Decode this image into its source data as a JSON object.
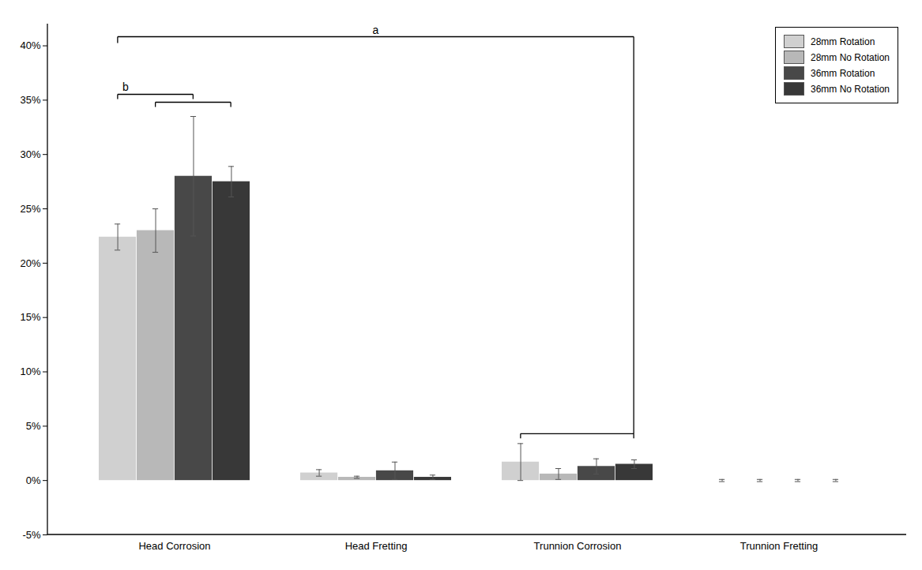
{
  "chart_data": {
    "type": "bar",
    "categories": [
      "Head Corrosion",
      "Head Fretting",
      "Trunnion Corrosion",
      "Trunnion Fretting"
    ],
    "series": [
      {
        "name": "28mm Rotation",
        "color": "#d0d0d0",
        "values": [
          0.224,
          0.007,
          0.017,
          0.0
        ],
        "errors": [
          0.012,
          0.003,
          0.017,
          0.001
        ]
      },
      {
        "name": "28mm No Rotation",
        "color": "#b8b8b8",
        "values": [
          0.23,
          0.003,
          0.006,
          0.0
        ],
        "errors": [
          0.02,
          0.001,
          0.005,
          0.001
        ]
      },
      {
        "name": "36mm Rotation",
        "color": "#484848",
        "values": [
          0.28,
          0.009,
          0.013,
          0.0
        ],
        "errors": [
          0.055,
          0.008,
          0.007,
          0.001
        ]
      },
      {
        "name": "36mm No Rotation",
        "color": "#383838",
        "values": [
          0.275,
          0.003,
          0.015,
          0.0
        ],
        "errors": [
          0.014,
          0.002,
          0.004,
          0.001
        ]
      }
    ],
    "ylim": [
      -0.05,
      0.42
    ],
    "yticks": [
      {
        "value": -0.05,
        "label": "-5%"
      },
      {
        "value": 0.0,
        "label": "0%"
      },
      {
        "value": 0.05,
        "label": "5%"
      },
      {
        "value": 0.1,
        "label": "10%"
      },
      {
        "value": 0.15,
        "label": "15%"
      },
      {
        "value": 0.2,
        "label": "20%"
      },
      {
        "value": 0.25,
        "label": "25%"
      },
      {
        "value": 0.3,
        "label": "30%"
      },
      {
        "value": 0.35,
        "label": "35%"
      },
      {
        "value": 0.4,
        "label": "40%"
      }
    ],
    "grid": false,
    "legend": "upper right",
    "annotations": [
      {
        "text": "a",
        "y": 0.408
      },
      {
        "text": "b",
        "y": 0.355
      }
    ]
  }
}
